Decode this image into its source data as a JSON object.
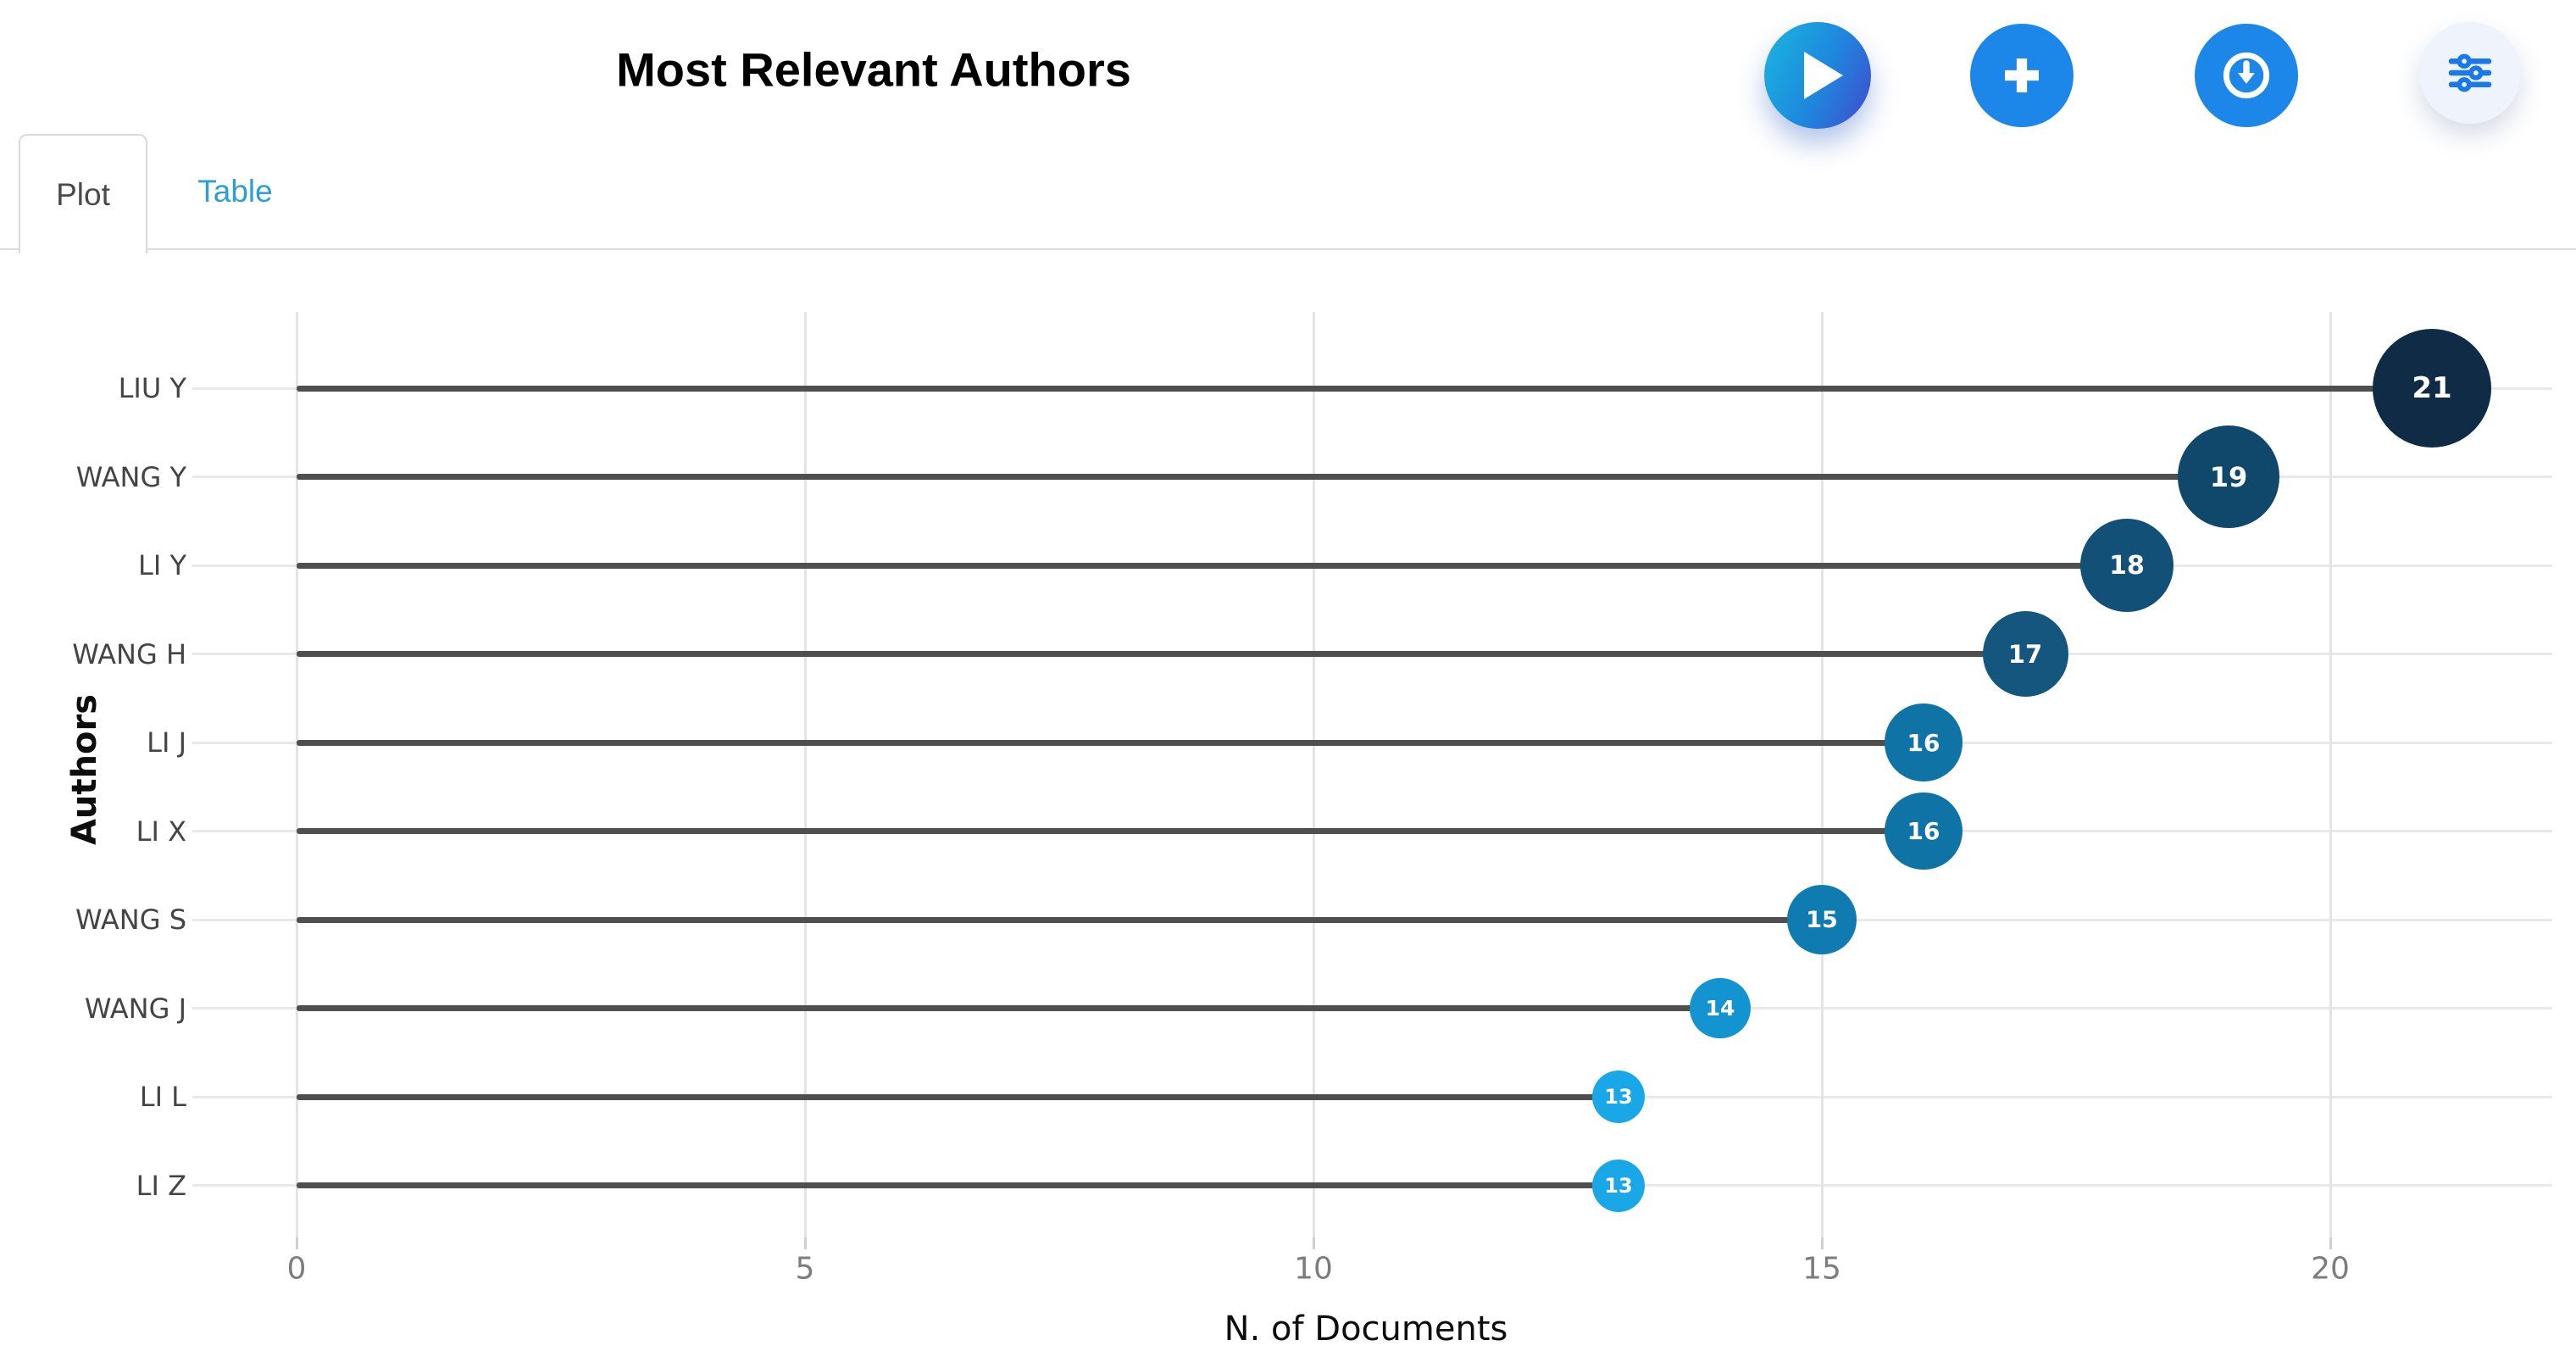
{
  "header": {
    "title": "Most Relevant Authors",
    "actions": [
      {
        "id": "run",
        "icon": "play-icon"
      },
      {
        "id": "add",
        "icon": "plus-icon"
      },
      {
        "id": "download",
        "icon": "download-icon"
      },
      {
        "id": "filters",
        "icon": "sliders-icon"
      }
    ]
  },
  "tabs": {
    "items": [
      {
        "label": "Plot",
        "active": true
      },
      {
        "label": "Table",
        "active": false
      }
    ]
  },
  "chart_data": {
    "type": "bar",
    "variant": "lollipop-horizontal",
    "categories": [
      "LIU Y",
      "WANG Y",
      "LI Y",
      "WANG H",
      "LI J",
      "LI X",
      "WANG S",
      "WANG J",
      "LI L",
      "LI Z"
    ],
    "values": [
      21,
      19,
      18,
      17,
      16,
      16,
      15,
      14,
      13,
      13
    ],
    "title": "Most Relevant Authors",
    "xlabel": "N. of Documents",
    "ylabel": "Authors",
    "xlim": [
      0,
      22
    ],
    "xticks": [
      0,
      5,
      10,
      15,
      20
    ],
    "grid": true,
    "stem_color": "#4f4f4f",
    "gridline_color": "#e9e9e9",
    "bubble_colors": {
      "13": "#1aa7e8",
      "14": "#1493d1",
      "15": "#107bb0",
      "16": "#0f73a5",
      "17": "#15567e",
      "18": "#125078",
      "19": "#10486c",
      "21": "#0f2b45"
    },
    "accent_blue": "#1c87e8",
    "tab_link_color": "#2d9fd6"
  }
}
